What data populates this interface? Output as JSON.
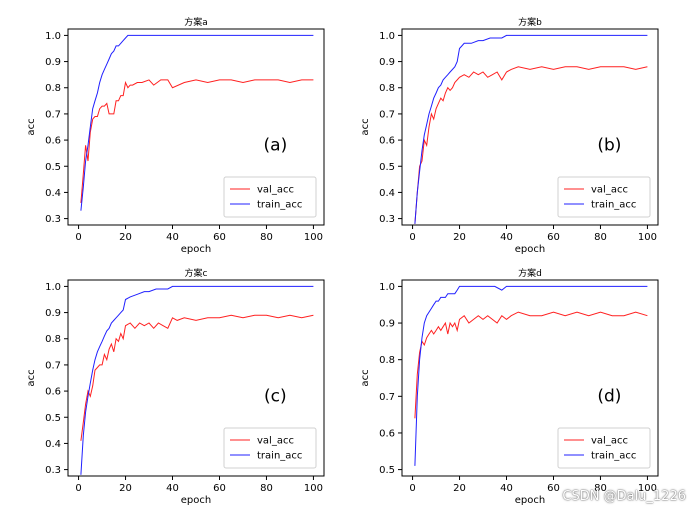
{
  "figure": {
    "watermark": "CSDN @Dalu_1226",
    "colors": {
      "val": "#ff2020",
      "train": "#2020ff",
      "axis": "#000000",
      "frame": "#000000"
    }
  },
  "chart_data": [
    {
      "type": "line",
      "title": "方案a",
      "panel_label": "(a)",
      "xlabel": "epoch",
      "ylabel": "acc",
      "xlim": [
        0,
        100
      ],
      "ylim": [
        0.3,
        1.0
      ],
      "xticks": [
        0,
        20,
        40,
        60,
        80,
        100
      ],
      "yticks": [
        0.3,
        0.4,
        0.5,
        0.6,
        0.7,
        0.8,
        0.9,
        1.0
      ],
      "ytick_labels": [
        "0.3",
        "0.4",
        "0.5",
        "0.6",
        "0.7",
        "0.8",
        "0.9",
        "1.0"
      ],
      "legend_position": "lower-right",
      "series": [
        {
          "name": "val_acc",
          "color": "#ff2020",
          "x": [
            1,
            2,
            3,
            4,
            5,
            6,
            7,
            8,
            9,
            10,
            11,
            12,
            13,
            14,
            15,
            16,
            17,
            18,
            19,
            20,
            21,
            22,
            23,
            25,
            27,
            30,
            32,
            35,
            38,
            40,
            45,
            50,
            55,
            60,
            65,
            70,
            75,
            80,
            85,
            90,
            95,
            100
          ],
          "y": [
            0.36,
            0.47,
            0.58,
            0.52,
            0.63,
            0.68,
            0.69,
            0.69,
            0.72,
            0.73,
            0.73,
            0.74,
            0.7,
            0.7,
            0.7,
            0.75,
            0.75,
            0.77,
            0.77,
            0.82,
            0.8,
            0.81,
            0.81,
            0.82,
            0.82,
            0.83,
            0.81,
            0.83,
            0.83,
            0.8,
            0.82,
            0.83,
            0.82,
            0.83,
            0.83,
            0.82,
            0.83,
            0.83,
            0.83,
            0.82,
            0.83,
            0.83
          ]
        },
        {
          "name": "train_acc",
          "color": "#2020ff",
          "x": [
            1,
            2,
            3,
            4,
            5,
            6,
            7,
            8,
            9,
            10,
            11,
            12,
            13,
            14,
            15,
            16,
            17,
            18,
            19,
            20,
            21,
            22,
            25,
            30,
            35,
            40,
            50,
            60,
            70,
            80,
            90,
            100
          ],
          "y": [
            0.33,
            0.42,
            0.52,
            0.58,
            0.65,
            0.72,
            0.75,
            0.78,
            0.82,
            0.85,
            0.87,
            0.89,
            0.91,
            0.93,
            0.94,
            0.96,
            0.96,
            0.97,
            0.98,
            0.99,
            1.0,
            1.0,
            1.0,
            1.0,
            1.0,
            1.0,
            1.0,
            1.0,
            1.0,
            1.0,
            1.0,
            1.0
          ]
        }
      ]
    },
    {
      "type": "line",
      "title": "方案b",
      "panel_label": "(b)",
      "xlabel": "epoch",
      "ylabel": "acc",
      "xlim": [
        0,
        100
      ],
      "ylim": [
        0.3,
        1.0
      ],
      "xticks": [
        0,
        20,
        40,
        60,
        80,
        100
      ],
      "yticks": [
        0.3,
        0.4,
        0.5,
        0.6,
        0.7,
        0.8,
        0.9,
        1.0
      ],
      "ytick_labels": [
        "0.3",
        "0.4",
        "0.5",
        "0.6",
        "0.7",
        "0.8",
        "0.9",
        "1.0"
      ],
      "legend_position": "lower-right",
      "series": [
        {
          "name": "val_acc",
          "color": "#ff2020",
          "x": [
            1,
            2,
            3,
            4,
            5,
            6,
            7,
            8,
            9,
            10,
            11,
            12,
            13,
            14,
            15,
            16,
            17,
            18,
            19,
            20,
            22,
            24,
            26,
            28,
            30,
            32,
            34,
            36,
            38,
            40,
            42,
            45,
            50,
            55,
            60,
            65,
            70,
            75,
            80,
            85,
            90,
            95,
            100
          ],
          "y": [
            0.28,
            0.4,
            0.5,
            0.52,
            0.6,
            0.58,
            0.65,
            0.7,
            0.68,
            0.72,
            0.74,
            0.76,
            0.75,
            0.78,
            0.8,
            0.79,
            0.8,
            0.82,
            0.83,
            0.84,
            0.85,
            0.84,
            0.86,
            0.85,
            0.86,
            0.84,
            0.85,
            0.86,
            0.83,
            0.86,
            0.87,
            0.88,
            0.87,
            0.88,
            0.87,
            0.88,
            0.88,
            0.87,
            0.88,
            0.88,
            0.88,
            0.87,
            0.88
          ]
        },
        {
          "name": "train_acc",
          "color": "#2020ff",
          "x": [
            1,
            2,
            3,
            4,
            5,
            6,
            7,
            8,
            9,
            10,
            11,
            12,
            13,
            14,
            15,
            16,
            17,
            18,
            19,
            20,
            21,
            22,
            25,
            28,
            30,
            33,
            35,
            38,
            40,
            45,
            50,
            60,
            70,
            80,
            90,
            100
          ],
          "y": [
            0.28,
            0.4,
            0.48,
            0.56,
            0.62,
            0.66,
            0.7,
            0.73,
            0.76,
            0.78,
            0.8,
            0.81,
            0.83,
            0.84,
            0.85,
            0.86,
            0.87,
            0.88,
            0.9,
            0.95,
            0.96,
            0.97,
            0.97,
            0.98,
            0.98,
            0.99,
            0.99,
            0.99,
            1.0,
            1.0,
            1.0,
            1.0,
            1.0,
            1.0,
            1.0,
            1.0
          ]
        }
      ]
    },
    {
      "type": "line",
      "title": "方案c",
      "panel_label": "(c)",
      "xlabel": "epoch",
      "ylabel": "acc",
      "xlim": [
        0,
        100
      ],
      "ylim": [
        0.3,
        1.0
      ],
      "xticks": [
        0,
        20,
        40,
        60,
        80,
        100
      ],
      "yticks": [
        0.3,
        0.4,
        0.5,
        0.6,
        0.7,
        0.8,
        0.9,
        1.0
      ],
      "ytick_labels": [
        "0.3",
        "0.4",
        "0.5",
        "0.6",
        "0.7",
        "0.8",
        "0.9",
        "1.0"
      ],
      "legend_position": "lower-right",
      "series": [
        {
          "name": "val_acc",
          "color": "#ff2020",
          "x": [
            1,
            2,
            3,
            4,
            5,
            6,
            7,
            8,
            9,
            10,
            11,
            12,
            13,
            14,
            15,
            16,
            17,
            18,
            19,
            20,
            22,
            24,
            26,
            28,
            30,
            32,
            34,
            36,
            38,
            40,
            42,
            45,
            50,
            55,
            60,
            65,
            70,
            75,
            80,
            85,
            90,
            95,
            100
          ],
          "y": [
            0.41,
            0.48,
            0.55,
            0.6,
            0.58,
            0.62,
            0.68,
            0.69,
            0.7,
            0.7,
            0.74,
            0.72,
            0.76,
            0.78,
            0.75,
            0.8,
            0.79,
            0.82,
            0.8,
            0.85,
            0.86,
            0.84,
            0.86,
            0.85,
            0.86,
            0.84,
            0.86,
            0.85,
            0.84,
            0.88,
            0.87,
            0.88,
            0.87,
            0.88,
            0.88,
            0.89,
            0.88,
            0.89,
            0.89,
            0.88,
            0.89,
            0.88,
            0.89
          ]
        },
        {
          "name": "train_acc",
          "color": "#2020ff",
          "x": [
            1,
            2,
            3,
            4,
            5,
            6,
            7,
            8,
            9,
            10,
            11,
            12,
            13,
            14,
            15,
            16,
            17,
            18,
            19,
            20,
            22,
            25,
            28,
            30,
            33,
            35,
            38,
            40,
            45,
            50,
            60,
            70,
            80,
            90,
            100
          ],
          "y": [
            0.28,
            0.43,
            0.52,
            0.58,
            0.63,
            0.68,
            0.72,
            0.75,
            0.77,
            0.79,
            0.81,
            0.83,
            0.84,
            0.86,
            0.87,
            0.88,
            0.89,
            0.9,
            0.91,
            0.95,
            0.96,
            0.97,
            0.98,
            0.98,
            0.99,
            0.99,
            0.99,
            1.0,
            1.0,
            1.0,
            1.0,
            1.0,
            1.0,
            1.0,
            1.0
          ]
        }
      ]
    },
    {
      "type": "line",
      "title": "方案d",
      "panel_label": "(d)",
      "xlabel": "epoch",
      "ylabel": "acc",
      "xlim": [
        0,
        100
      ],
      "ylim": [
        0.5,
        1.0
      ],
      "xticks": [
        0,
        20,
        40,
        60,
        80,
        100
      ],
      "yticks": [
        0.5,
        0.6,
        0.7,
        0.8,
        0.9,
        1.0
      ],
      "ytick_labels": [
        "0.5",
        "0.6",
        "0.7",
        "0.8",
        "0.9",
        "1.0"
      ],
      "legend_position": "lower-right",
      "series": [
        {
          "name": "val_acc",
          "color": "#ff2020",
          "x": [
            1,
            2,
            3,
            4,
            5,
            6,
            7,
            8,
            9,
            10,
            11,
            12,
            13,
            14,
            15,
            16,
            17,
            18,
            19,
            20,
            22,
            24,
            26,
            28,
            30,
            32,
            34,
            36,
            38,
            40,
            42,
            45,
            50,
            55,
            60,
            65,
            70,
            75,
            80,
            85,
            90,
            95,
            100
          ],
          "y": [
            0.64,
            0.76,
            0.82,
            0.85,
            0.84,
            0.86,
            0.87,
            0.88,
            0.87,
            0.88,
            0.89,
            0.88,
            0.89,
            0.9,
            0.87,
            0.9,
            0.89,
            0.9,
            0.88,
            0.91,
            0.92,
            0.9,
            0.91,
            0.92,
            0.91,
            0.92,
            0.91,
            0.9,
            0.92,
            0.91,
            0.92,
            0.93,
            0.92,
            0.92,
            0.93,
            0.92,
            0.93,
            0.92,
            0.93,
            0.92,
            0.92,
            0.93,
            0.92
          ]
        },
        {
          "name": "train_acc",
          "color": "#2020ff",
          "x": [
            1,
            2,
            3,
            4,
            5,
            6,
            7,
            8,
            9,
            10,
            11,
            12,
            13,
            14,
            15,
            16,
            17,
            18,
            19,
            20,
            22,
            25,
            30,
            35,
            38,
            40,
            45,
            50,
            60,
            70,
            80,
            90,
            100
          ],
          "y": [
            0.51,
            0.7,
            0.8,
            0.86,
            0.9,
            0.92,
            0.93,
            0.94,
            0.95,
            0.96,
            0.96,
            0.97,
            0.97,
            0.97,
            0.98,
            0.98,
            0.98,
            0.98,
            0.99,
            1.0,
            1.0,
            1.0,
            1.0,
            1.0,
            0.99,
            1.0,
            1.0,
            1.0,
            1.0,
            1.0,
            1.0,
            1.0,
            1.0
          ]
        }
      ]
    }
  ]
}
